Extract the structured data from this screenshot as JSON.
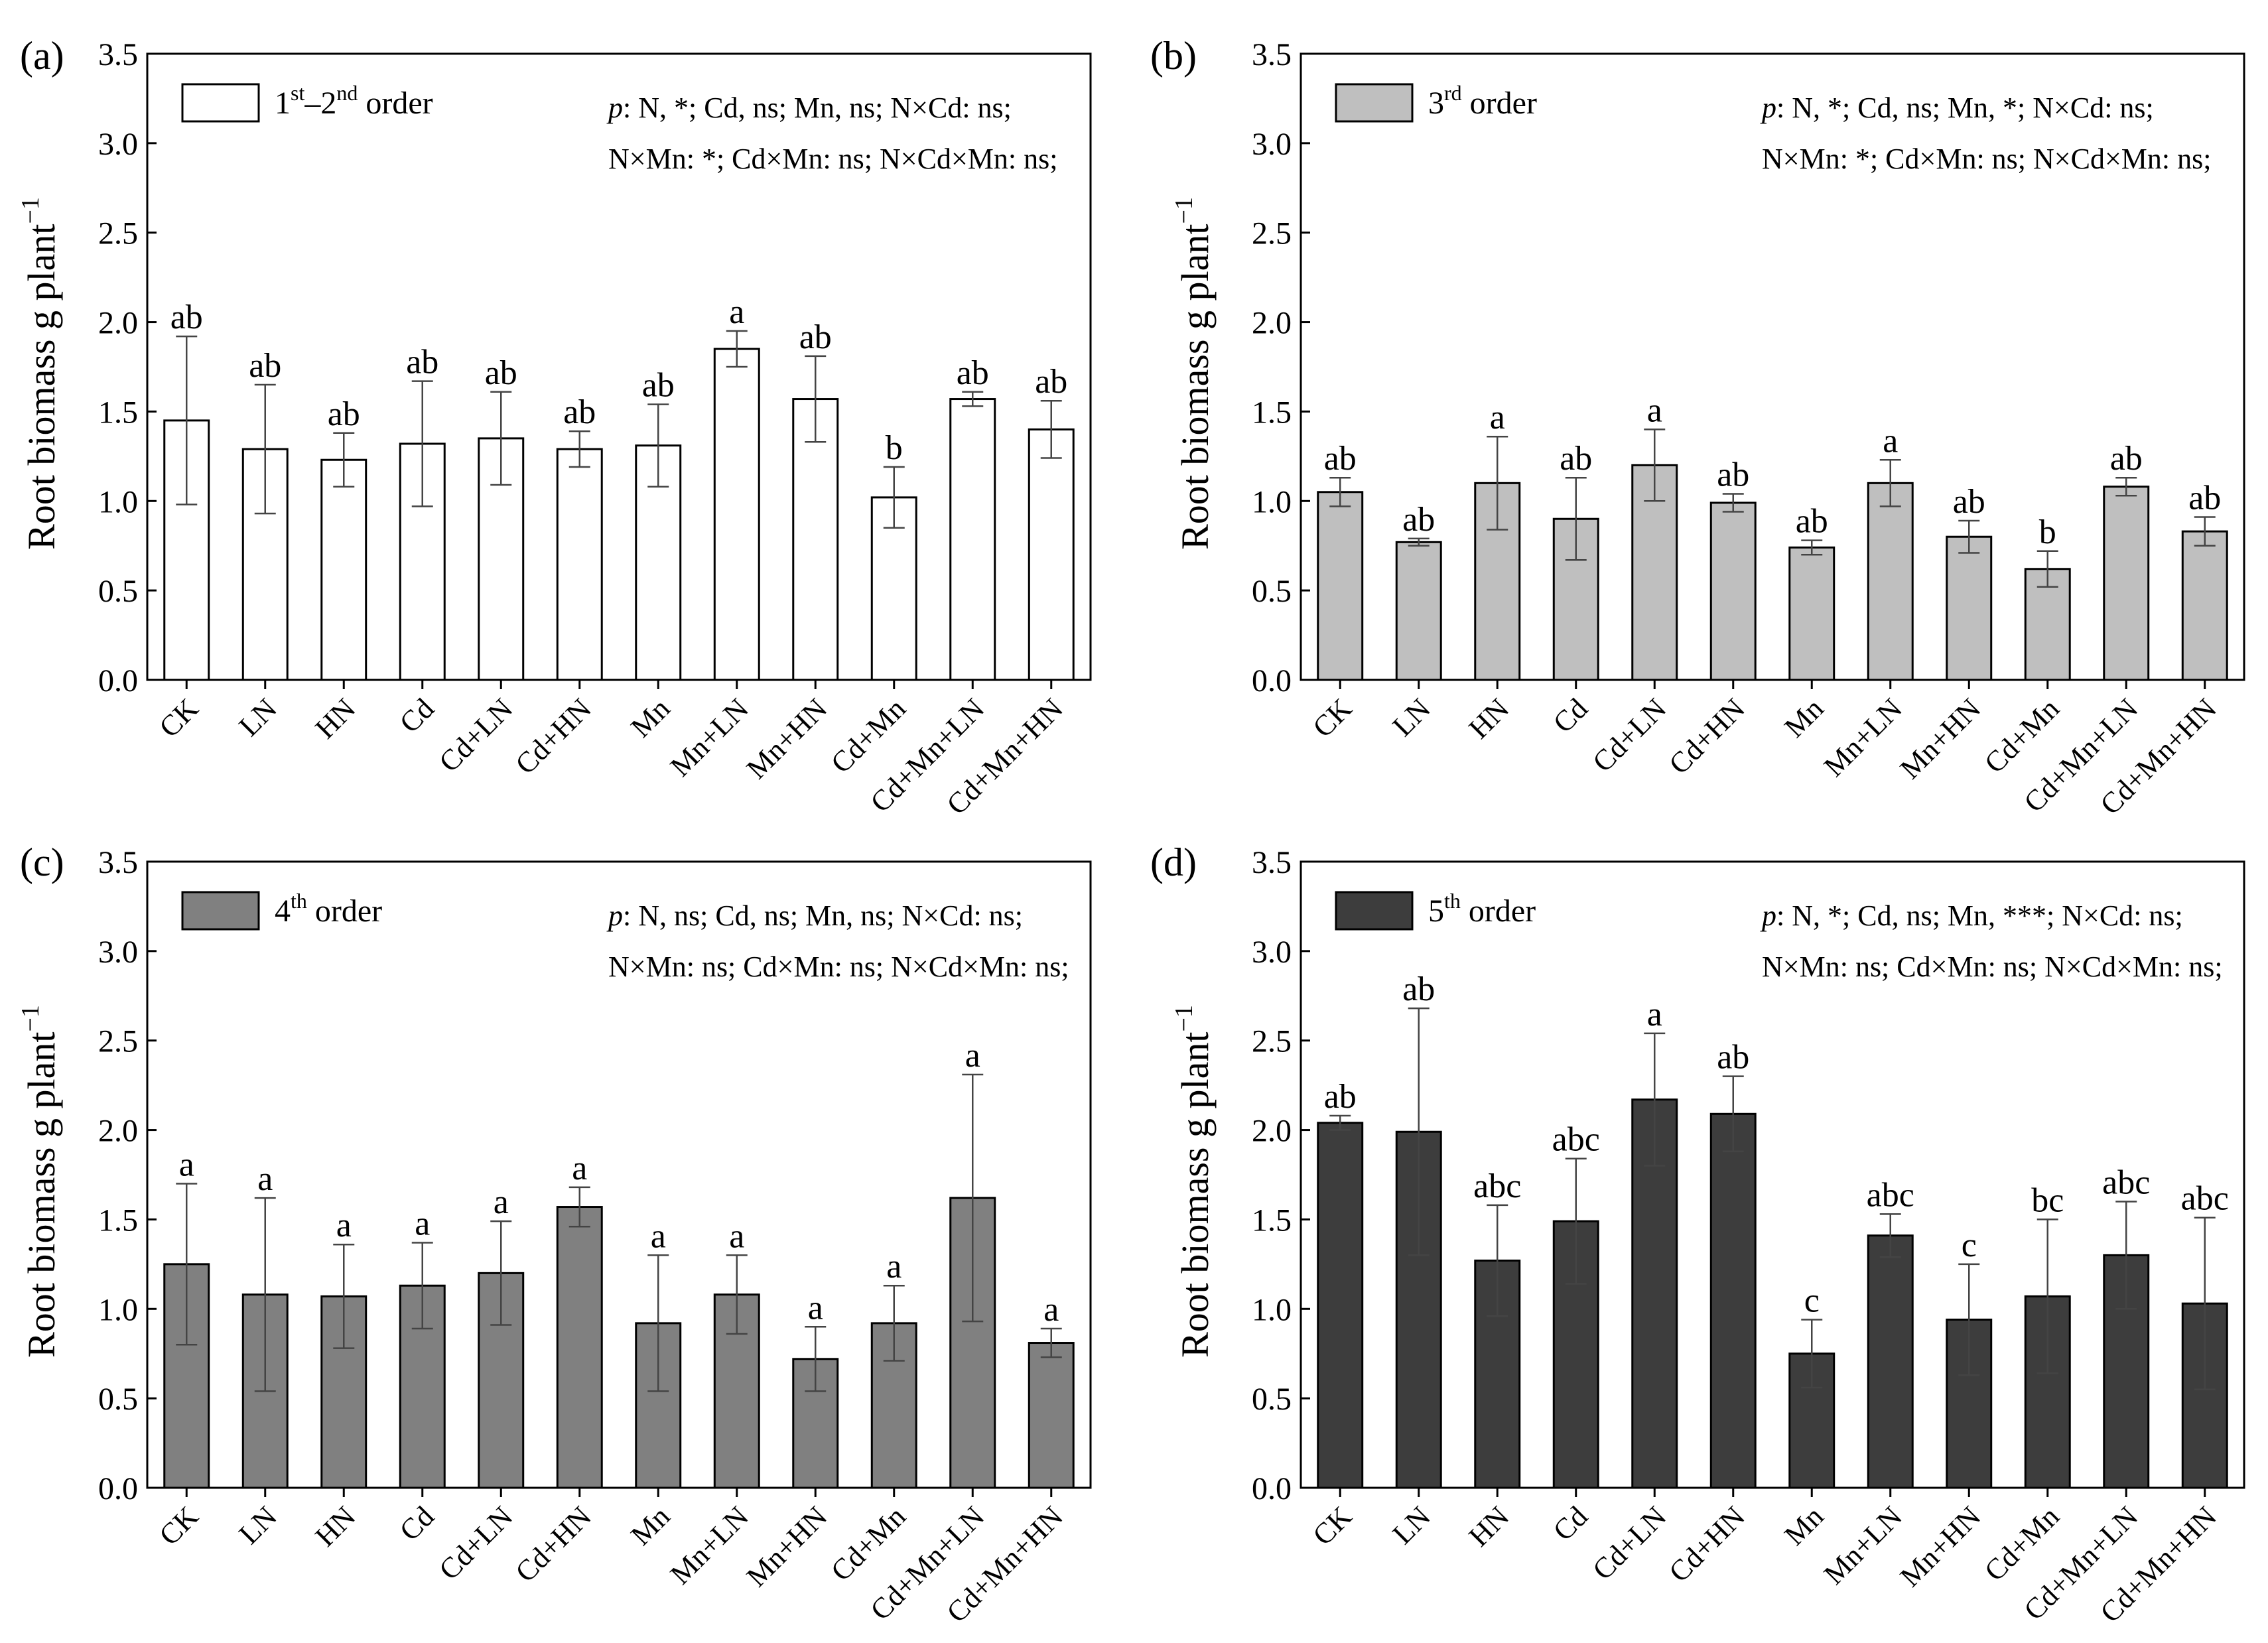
{
  "categories": [
    "CK",
    "LN",
    "HN",
    "Cd",
    "Cd+LN",
    "Cd+HN",
    "Mn",
    "Mn+LN",
    "Mn+HN",
    "Cd+Mn",
    "Cd+Mn+LN",
    "Cd+Mn+HN"
  ],
  "chart_data": [
    {
      "panel": "(a)",
      "type": "bar",
      "series_name": "1st–2nd order",
      "legend": {
        "main": "1",
        "sup1": "st",
        "mid": "–2",
        "sup2": "nd",
        "tail": " order"
      },
      "bar_color": "#ffffff",
      "values": [
        1.45,
        1.29,
        1.23,
        1.32,
        1.35,
        1.29,
        1.31,
        1.85,
        1.57,
        1.02,
        1.57,
        1.4
      ],
      "errors": [
        0.47,
        0.36,
        0.15,
        0.35,
        0.26,
        0.1,
        0.23,
        0.1,
        0.24,
        0.17,
        0.04,
        0.16
      ],
      "letters": [
        "ab",
        "ab",
        "ab",
        "ab",
        "ab",
        "ab",
        "ab",
        "a",
        "ab",
        "b",
        "ab",
        "ab"
      ],
      "annotation": {
        "p_label": "p",
        "line1": ": N, *; Cd, ns; Mn, ns; N×Cd: ns;",
        "line2": "N×Mn: *; Cd×Mn: ns; N×Cd×Mn: ns;"
      },
      "ylabel": {
        "main": "Root biomass g plant",
        "sup": "−1"
      },
      "ylim": [
        0,
        3.5
      ],
      "yticks": [
        "0.0",
        "0.5",
        "1.0",
        "1.5",
        "2.0",
        "2.5",
        "3.0",
        "3.5"
      ]
    },
    {
      "panel": "(b)",
      "type": "bar",
      "series_name": "3rd order",
      "legend": {
        "main": "3",
        "sup1": "rd",
        "mid": "",
        "sup2": "",
        "tail": " order"
      },
      "bar_color": "#bfbfbf",
      "values": [
        1.05,
        0.77,
        1.1,
        0.9,
        1.2,
        0.99,
        0.74,
        1.1,
        0.8,
        0.62,
        1.08,
        0.83
      ],
      "errors": [
        0.08,
        0.02,
        0.26,
        0.23,
        0.2,
        0.05,
        0.04,
        0.13,
        0.09,
        0.1,
        0.05,
        0.08
      ],
      "letters": [
        "ab",
        "ab",
        "a",
        "ab",
        "a",
        "ab",
        "ab",
        "a",
        "ab",
        "b",
        "ab",
        "ab"
      ],
      "annotation": {
        "p_label": "p",
        "line1": ": N, *; Cd, ns; Mn, *; N×Cd: ns;",
        "line2": "N×Mn: *; Cd×Mn: ns; N×Cd×Mn: ns;"
      },
      "ylabel": {
        "main": "Root biomass g plant",
        "sup": "−1"
      },
      "ylim": [
        0,
        3.5
      ],
      "yticks": [
        "0.0",
        "0.5",
        "1.0",
        "1.5",
        "2.0",
        "2.5",
        "3.0",
        "3.5"
      ]
    },
    {
      "panel": "(c)",
      "type": "bar",
      "series_name": "4th order",
      "legend": {
        "main": "4",
        "sup1": "th",
        "mid": "",
        "sup2": "",
        "tail": " order"
      },
      "bar_color": "#808080",
      "values": [
        1.25,
        1.08,
        1.07,
        1.13,
        1.2,
        1.57,
        0.92,
        1.08,
        0.72,
        0.92,
        1.62,
        0.81
      ],
      "errors": [
        0.45,
        0.54,
        0.29,
        0.24,
        0.29,
        0.11,
        0.38,
        0.22,
        0.18,
        0.21,
        0.69,
        0.08
      ],
      "letters": [
        "a",
        "a",
        "a",
        "a",
        "a",
        "a",
        "a",
        "a",
        "a",
        "a",
        "a",
        "a"
      ],
      "annotation": {
        "p_label": "p",
        "line1": ": N, ns; Cd, ns; Mn, ns; N×Cd: ns;",
        "line2": "N×Mn: ns; Cd×Mn: ns; N×Cd×Mn: ns;"
      },
      "ylabel": {
        "main": "Root biomass g plant",
        "sup": "−1"
      },
      "ylim": [
        0,
        3.5
      ],
      "yticks": [
        "0.0",
        "0.5",
        "1.0",
        "1.5",
        "2.0",
        "2.5",
        "3.0",
        "3.5"
      ]
    },
    {
      "panel": "(d)",
      "type": "bar",
      "series_name": "5th order",
      "legend": {
        "main": "5",
        "sup1": "th",
        "mid": "",
        "sup2": "",
        "tail": " order"
      },
      "bar_color": "#3d3d3d",
      "values": [
        2.04,
        1.99,
        1.27,
        1.49,
        2.17,
        2.09,
        0.75,
        1.41,
        0.94,
        1.07,
        1.3,
        1.03
      ],
      "errors": [
        0.04,
        0.69,
        0.31,
        0.35,
        0.37,
        0.21,
        0.19,
        0.12,
        0.31,
        0.43,
        0.3,
        0.48
      ],
      "letters": [
        "ab",
        "ab",
        "abc",
        "abc",
        "a",
        "ab",
        "c",
        "abc",
        "c",
        "bc",
        "abc",
        "abc"
      ],
      "annotation": {
        "p_label": "p",
        "line1": ": N, *; Cd, ns; Mn, ***; N×Cd: ns;",
        "line2": "N×Mn: ns; Cd×Mn: ns; N×Cd×Mn: ns;"
      },
      "ylabel": {
        "main": "Root biomass g plant",
        "sup": "−1"
      },
      "ylim": [
        0,
        3.5
      ],
      "yticks": [
        "0.0",
        "0.5",
        "1.0",
        "1.5",
        "2.0",
        "2.5",
        "3.0",
        "3.5"
      ]
    }
  ]
}
